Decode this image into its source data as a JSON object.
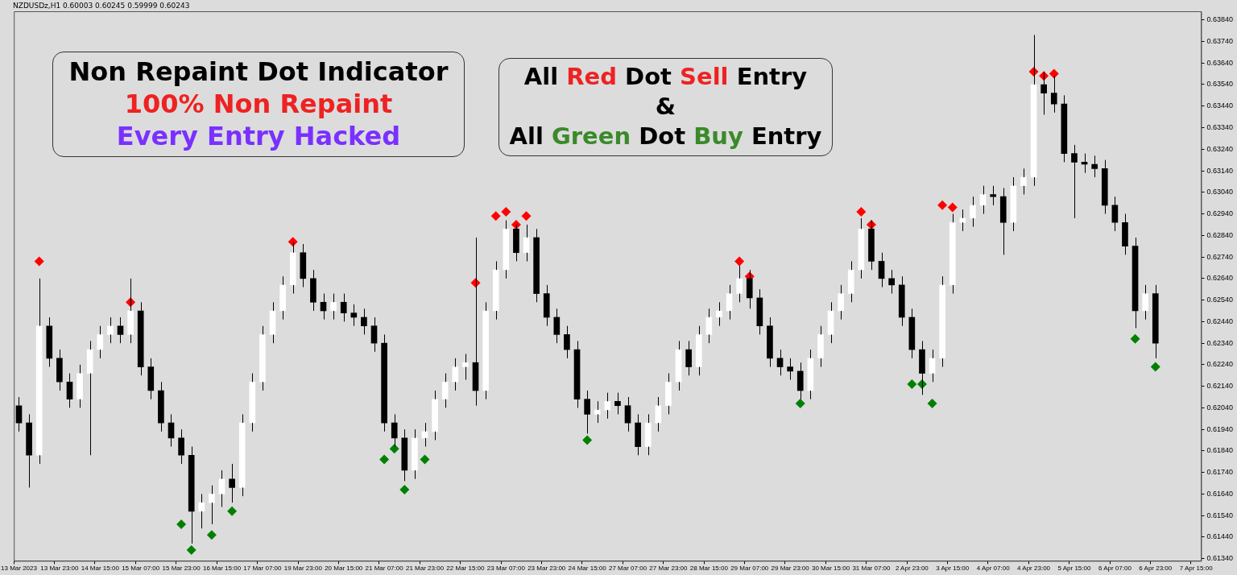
{
  "chart_data": {
    "type": "candlestick",
    "subtitle": "NZDUSDz,H1  0.60003 0.60245 0.59999 0.60243",
    "annotations": [
      "Non Repaint Dot Indicator",
      "100% Non Repaint",
      "Every Entry Hacked",
      "All Red Dot Sell Entry",
      "&",
      "All Green Dot Buy Entry"
    ],
    "legend": false,
    "marker": "diamond",
    "categories": [
      "13 Mar 2023",
      null,
      null,
      null,
      "13 Mar 23:00",
      null,
      null,
      null,
      "14 Mar 15:00",
      null,
      null,
      null,
      "15 Mar 07:00",
      null,
      null,
      null,
      "15 Mar 23:00",
      null,
      null,
      null,
      "16 Mar 15:00",
      null,
      null,
      null,
      "17 Mar 07:00",
      null,
      null,
      null,
      "19 Mar 23:00",
      null,
      null,
      null,
      "20 Mar 15:00",
      null,
      null,
      null,
      "21 Mar 07:00",
      null,
      null,
      null,
      "21 Mar 23:00",
      null,
      null,
      null,
      "22 Mar 15:00",
      null,
      null,
      null,
      "23 Mar 07:00",
      null,
      null,
      null,
      "23 Mar 23:00",
      null,
      null,
      null,
      "24 Mar 15:00",
      null,
      null,
      null,
      "27 Mar 07:00",
      null,
      null,
      null,
      "27 Mar 23:00",
      null,
      null,
      null,
      "28 Mar 15:00",
      null,
      null,
      null,
      "29 Mar 07:00",
      null,
      null,
      null,
      "29 Mar 23:00",
      null,
      null,
      null,
      "30 Mar 15:00",
      null,
      null,
      null,
      "31 Mar 07:00",
      null,
      null,
      null,
      "2 Apr 23:00",
      null,
      null,
      null,
      "3 Apr 15:00",
      null,
      null,
      null,
      "4 Apr 07:00",
      null,
      null,
      null,
      "4 Apr 23:00",
      null,
      null,
      null,
      "5 Apr 15:00",
      null,
      null,
      null,
      "6 Apr 07:00",
      null,
      null,
      null,
      "6 Apr 23:00",
      null,
      null,
      null,
      "7 Apr 15:00"
    ],
    "ohlc": [
      [
        0.6205,
        0.6209,
        0.6193,
        0.6197
      ],
      [
        0.6197,
        0.6201,
        0.6167,
        0.6182
      ],
      [
        0.6182,
        0.6264,
        0.6178,
        0.6242
      ],
      [
        0.6242,
        0.6246,
        0.6223,
        0.6227
      ],
      [
        0.6227,
        0.6231,
        0.6212,
        0.6216
      ],
      [
        0.6216,
        0.622,
        0.6204,
        0.6208
      ],
      [
        0.6208,
        0.6224,
        0.6204,
        0.622
      ],
      [
        0.622,
        0.6235,
        0.6182,
        0.6231
      ],
      [
        0.6231,
        0.6242,
        0.6227,
        0.6238
      ],
      [
        0.6238,
        0.6246,
        0.6234,
        0.6242
      ],
      [
        0.6242,
        0.6246,
        0.6234,
        0.6238
      ],
      [
        0.6238,
        0.6264,
        0.6234,
        0.6249
      ],
      [
        0.6249,
        0.6253,
        0.6219,
        0.6223
      ],
      [
        0.6223,
        0.6227,
        0.6208,
        0.6212
      ],
      [
        0.6212,
        0.6216,
        0.6193,
        0.6197
      ],
      [
        0.6197,
        0.6201,
        0.6186,
        0.619
      ],
      [
        0.619,
        0.6194,
        0.6178,
        0.6182
      ],
      [
        0.6182,
        0.6186,
        0.6141,
        0.6156
      ],
      [
        0.6156,
        0.6164,
        0.6148,
        0.616
      ],
      [
        0.616,
        0.6168,
        0.615,
        0.6164
      ],
      [
        0.6164,
        0.6175,
        0.6158,
        0.6171
      ],
      [
        0.6171,
        0.6178,
        0.616,
        0.6167
      ],
      [
        0.6167,
        0.6201,
        0.6163,
        0.6197
      ],
      [
        0.6197,
        0.622,
        0.6193,
        0.6216
      ],
      [
        0.6216,
        0.6242,
        0.6212,
        0.6238
      ],
      [
        0.6238,
        0.6253,
        0.6234,
        0.6249
      ],
      [
        0.6249,
        0.6265,
        0.6245,
        0.6261
      ],
      [
        0.6261,
        0.6281,
        0.6257,
        0.6276
      ],
      [
        0.6276,
        0.628,
        0.626,
        0.6264
      ],
      [
        0.6264,
        0.6268,
        0.6249,
        0.6253
      ],
      [
        0.6253,
        0.6257,
        0.6245,
        0.6249
      ],
      [
        0.6249,
        0.6257,
        0.6245,
        0.6253
      ],
      [
        0.6253,
        0.6257,
        0.6244,
        0.6248
      ],
      [
        0.6248,
        0.6252,
        0.6242,
        0.6246
      ],
      [
        0.6246,
        0.625,
        0.6238,
        0.6242
      ],
      [
        0.6242,
        0.6246,
        0.623,
        0.6234
      ],
      [
        0.6234,
        0.6238,
        0.6193,
        0.6197
      ],
      [
        0.6197,
        0.6201,
        0.6186,
        0.619
      ],
      [
        0.619,
        0.6194,
        0.617,
        0.6175
      ],
      [
        0.6175,
        0.6194,
        0.6171,
        0.619
      ],
      [
        0.619,
        0.6197,
        0.6186,
        0.6193
      ],
      [
        0.6193,
        0.6212,
        0.6189,
        0.6208
      ],
      [
        0.6208,
        0.622,
        0.6204,
        0.6216
      ],
      [
        0.6216,
        0.6227,
        0.6212,
        0.6223
      ],
      [
        0.6223,
        0.6229,
        0.6217,
        0.6225
      ],
      [
        0.6225,
        0.6283,
        0.6205,
        0.6212
      ],
      [
        0.6212,
        0.6253,
        0.6208,
        0.6249
      ],
      [
        0.6249,
        0.6272,
        0.6245,
        0.6268
      ],
      [
        0.6268,
        0.6291,
        0.6264,
        0.6287
      ],
      [
        0.6287,
        0.6289,
        0.6272,
        0.6276
      ],
      [
        0.6276,
        0.6289,
        0.6272,
        0.6283
      ],
      [
        0.6283,
        0.6287,
        0.6253,
        0.6257
      ],
      [
        0.6257,
        0.6261,
        0.6242,
        0.6246
      ],
      [
        0.6246,
        0.625,
        0.6234,
        0.6238
      ],
      [
        0.6238,
        0.6242,
        0.6227,
        0.6231
      ],
      [
        0.6231,
        0.6235,
        0.6204,
        0.6208
      ],
      [
        0.6208,
        0.6212,
        0.6192,
        0.6201
      ],
      [
        0.6201,
        0.6207,
        0.6197,
        0.6203
      ],
      [
        0.6203,
        0.6211,
        0.6199,
        0.6207
      ],
      [
        0.6207,
        0.6211,
        0.6201,
        0.6205
      ],
      [
        0.6205,
        0.6209,
        0.6193,
        0.6197
      ],
      [
        0.6197,
        0.6201,
        0.6182,
        0.6186
      ],
      [
        0.6186,
        0.6201,
        0.6182,
        0.6197
      ],
      [
        0.6197,
        0.6209,
        0.6193,
        0.6205
      ],
      [
        0.6205,
        0.622,
        0.6201,
        0.6216
      ],
      [
        0.6216,
        0.6235,
        0.6212,
        0.6231
      ],
      [
        0.6231,
        0.6235,
        0.6219,
        0.6223
      ],
      [
        0.6223,
        0.6242,
        0.6219,
        0.6238
      ],
      [
        0.6238,
        0.625,
        0.6234,
        0.6246
      ],
      [
        0.6246,
        0.6253,
        0.6242,
        0.6249
      ],
      [
        0.6249,
        0.6261,
        0.6245,
        0.6257
      ],
      [
        0.6257,
        0.627,
        0.6253,
        0.6264
      ],
      [
        0.6264,
        0.6268,
        0.625,
        0.6255
      ],
      [
        0.6255,
        0.6259,
        0.6238,
        0.6242
      ],
      [
        0.6242,
        0.6246,
        0.6223,
        0.6227
      ],
      [
        0.6227,
        0.6231,
        0.6219,
        0.6223
      ],
      [
        0.6223,
        0.6227,
        0.6217,
        0.6221
      ],
      [
        0.6221,
        0.6225,
        0.6208,
        0.6212
      ],
      [
        0.6212,
        0.6231,
        0.6208,
        0.6227
      ],
      [
        0.6227,
        0.6242,
        0.6223,
        0.6238
      ],
      [
        0.6238,
        0.6253,
        0.6234,
        0.6249
      ],
      [
        0.6249,
        0.6261,
        0.6245,
        0.6257
      ],
      [
        0.6257,
        0.6272,
        0.6253,
        0.6268
      ],
      [
        0.6268,
        0.6292,
        0.6264,
        0.6287
      ],
      [
        0.6287,
        0.6291,
        0.6268,
        0.6272
      ],
      [
        0.6272,
        0.6276,
        0.626,
        0.6264
      ],
      [
        0.6264,
        0.6268,
        0.6257,
        0.6261
      ],
      [
        0.6261,
        0.6265,
        0.6242,
        0.6246
      ],
      [
        0.6246,
        0.625,
        0.6227,
        0.6231
      ],
      [
        0.6231,
        0.6235,
        0.621,
        0.622
      ],
      [
        0.622,
        0.6231,
        0.6216,
        0.6227
      ],
      [
        0.6227,
        0.6265,
        0.6223,
        0.6261
      ],
      [
        0.6261,
        0.6294,
        0.6257,
        0.629
      ],
      [
        0.629,
        0.6296,
        0.6286,
        0.6292
      ],
      [
        0.6292,
        0.6302,
        0.6288,
        0.6298
      ],
      [
        0.6298,
        0.6307,
        0.6294,
        0.6303
      ],
      [
        0.6303,
        0.6307,
        0.6298,
        0.6302
      ],
      [
        0.6302,
        0.6306,
        0.6275,
        0.629
      ],
      [
        0.629,
        0.6311,
        0.6286,
        0.6307
      ],
      [
        0.6307,
        0.6315,
        0.6303,
        0.6311
      ],
      [
        0.6311,
        0.6377,
        0.6307,
        0.6354
      ],
      [
        0.6354,
        0.636,
        0.634,
        0.635
      ],
      [
        0.635,
        0.6358,
        0.6341,
        0.6345
      ],
      [
        0.6345,
        0.6349,
        0.6318,
        0.6322
      ],
      [
        0.6322,
        0.6326,
        0.6292,
        0.6318
      ],
      [
        0.6318,
        0.6322,
        0.6313,
        0.6317
      ],
      [
        0.6317,
        0.6321,
        0.6311,
        0.6315
      ],
      [
        0.6315,
        0.6319,
        0.6294,
        0.6298
      ],
      [
        0.6298,
        0.6302,
        0.6286,
        0.629
      ],
      [
        0.629,
        0.6294,
        0.6275,
        0.6279
      ],
      [
        0.6279,
        0.6283,
        0.6241,
        0.6249
      ],
      [
        0.6249,
        0.6261,
        0.6245,
        0.6257
      ],
      [
        0.6257,
        0.6261,
        0.6227,
        0.6234
      ],
      null,
      null,
      null,
      null
    ],
    "series": [
      {
        "type": "scatter",
        "color": "#ff0000",
        "values": [
          null,
          null,
          0.6272,
          null,
          null,
          null,
          null,
          null,
          null,
          null,
          null,
          0.6253,
          null,
          null,
          null,
          null,
          null,
          null,
          null,
          null,
          null,
          null,
          null,
          null,
          null,
          null,
          null,
          0.6281,
          null,
          null,
          null,
          null,
          null,
          null,
          null,
          null,
          null,
          null,
          null,
          null,
          null,
          null,
          null,
          null,
          null,
          0.6262,
          null,
          0.6293,
          0.6295,
          0.6289,
          0.6293,
          null,
          null,
          null,
          null,
          null,
          null,
          null,
          null,
          null,
          null,
          null,
          null,
          null,
          null,
          null,
          null,
          null,
          null,
          null,
          null,
          0.6272,
          0.6265,
          null,
          null,
          null,
          null,
          null,
          null,
          null,
          null,
          null,
          null,
          0.6295,
          0.6289,
          null,
          null,
          null,
          null,
          null,
          null,
          0.6298,
          0.6297,
          null,
          null,
          null,
          null,
          null,
          null,
          null,
          0.636,
          0.6358,
          0.6359,
          null,
          null,
          null,
          null,
          null,
          null,
          null,
          null,
          null,
          null,
          null,
          null,
          null,
          null
        ]
      },
      {
        "type": "scatter",
        "color": "#008000",
        "values": [
          null,
          null,
          null,
          null,
          null,
          null,
          null,
          null,
          null,
          null,
          null,
          null,
          null,
          null,
          null,
          null,
          0.615,
          0.6138,
          null,
          0.6145,
          null,
          0.6156,
          null,
          null,
          null,
          null,
          null,
          null,
          null,
          null,
          null,
          null,
          null,
          null,
          null,
          null,
          0.618,
          0.6185,
          0.6166,
          null,
          0.618,
          null,
          null,
          null,
          null,
          null,
          null,
          null,
          null,
          null,
          null,
          null,
          null,
          null,
          null,
          null,
          0.6189,
          null,
          null,
          null,
          null,
          null,
          null,
          null,
          null,
          null,
          null,
          null,
          null,
          null,
          null,
          null,
          null,
          null,
          null,
          null,
          null,
          0.6206,
          null,
          null,
          null,
          null,
          null,
          null,
          null,
          null,
          null,
          null,
          0.6215,
          0.6215,
          0.6206,
          null,
          null,
          null,
          null,
          null,
          null,
          null,
          null,
          null,
          null,
          null,
          null,
          null,
          null,
          null,
          null,
          null,
          null,
          null,
          0.6236,
          null,
          0.6223,
          null,
          null,
          null,
          null
        ]
      }
    ],
    "ylim": [
      0.6133,
      0.6388
    ],
    "yticks": [
      {
        "value": 0.6134,
        "label": "0.61340"
      },
      {
        "value": 0.6144,
        "label": "0.61440"
      },
      {
        "value": 0.6154,
        "label": "0.61540"
      },
      {
        "value": 0.6164,
        "label": "0.61640"
      },
      {
        "value": 0.6174,
        "label": "0.61740"
      },
      {
        "value": 0.6184,
        "label": "0.61840"
      },
      {
        "value": 0.6194,
        "label": "0.61940"
      },
      {
        "value": 0.6204,
        "label": "0.62040"
      },
      {
        "value": 0.6214,
        "label": "0.62140"
      },
      {
        "value": 0.6224,
        "label": "0.62240"
      },
      {
        "value": 0.6234,
        "label": "0.62340"
      },
      {
        "value": 0.6244,
        "label": "0.62440"
      },
      {
        "value": 0.6254,
        "label": "0.62540"
      },
      {
        "value": 0.6264,
        "label": "0.62640"
      },
      {
        "value": 0.6274,
        "label": "0.62740"
      },
      {
        "value": 0.6284,
        "label": "0.62840"
      },
      {
        "value": 0.6294,
        "label": "0.62940"
      },
      {
        "value": 0.6304,
        "label": "0.63040"
      },
      {
        "value": 0.6314,
        "label": "0.63140"
      },
      {
        "value": 0.6324,
        "label": "0.63240"
      },
      {
        "value": 0.6334,
        "label": "0.63340"
      },
      {
        "value": 0.6344,
        "label": "0.63440"
      },
      {
        "value": 0.6354,
        "label": "0.63540"
      },
      {
        "value": 0.6364,
        "label": "0.63640"
      },
      {
        "value": 0.6374,
        "label": "0.63740"
      },
      {
        "value": 0.6384,
        "label": "0.63840"
      }
    ]
  }
}
